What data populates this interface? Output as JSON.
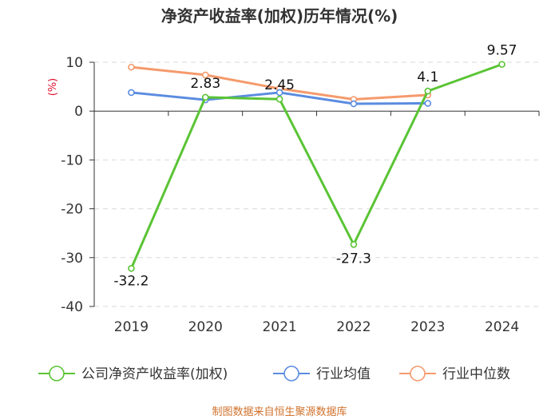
{
  "chart_data": {
    "type": "line",
    "title": "净资产收益率(加权)历年情况(%)",
    "ylabel": "(%)",
    "xlabel": "",
    "categories": [
      "2019",
      "2020",
      "2021",
      "2022",
      "2023",
      "2024"
    ],
    "ylim": [
      -40,
      10
    ],
    "yticks": [
      10,
      0,
      -10,
      -20,
      -30,
      -40
    ],
    "grid": true,
    "legend_position": "bottom",
    "series": [
      {
        "name": "公司净资产收益率(加权)",
        "color": "#5ac435",
        "values": [
          -32.2,
          2.83,
          2.45,
          -27.3,
          4.1,
          9.57
        ],
        "labels": [
          "-32.2",
          "2.83",
          "2.45",
          "-27.3",
          "4.1",
          "9.57"
        ],
        "show_labels": true
      },
      {
        "name": "行业均值",
        "color": "#5b8ce0",
        "values": [
          3.8,
          2.3,
          3.8,
          1.5,
          1.6,
          null
        ],
        "show_labels": false
      },
      {
        "name": "行业中位数",
        "color": "#f59a6c",
        "values": [
          9.0,
          7.4,
          4.6,
          2.4,
          3.3,
          null
        ],
        "show_labels": false
      }
    ]
  },
  "source_note": "制图数据来自恒生聚源数据库"
}
